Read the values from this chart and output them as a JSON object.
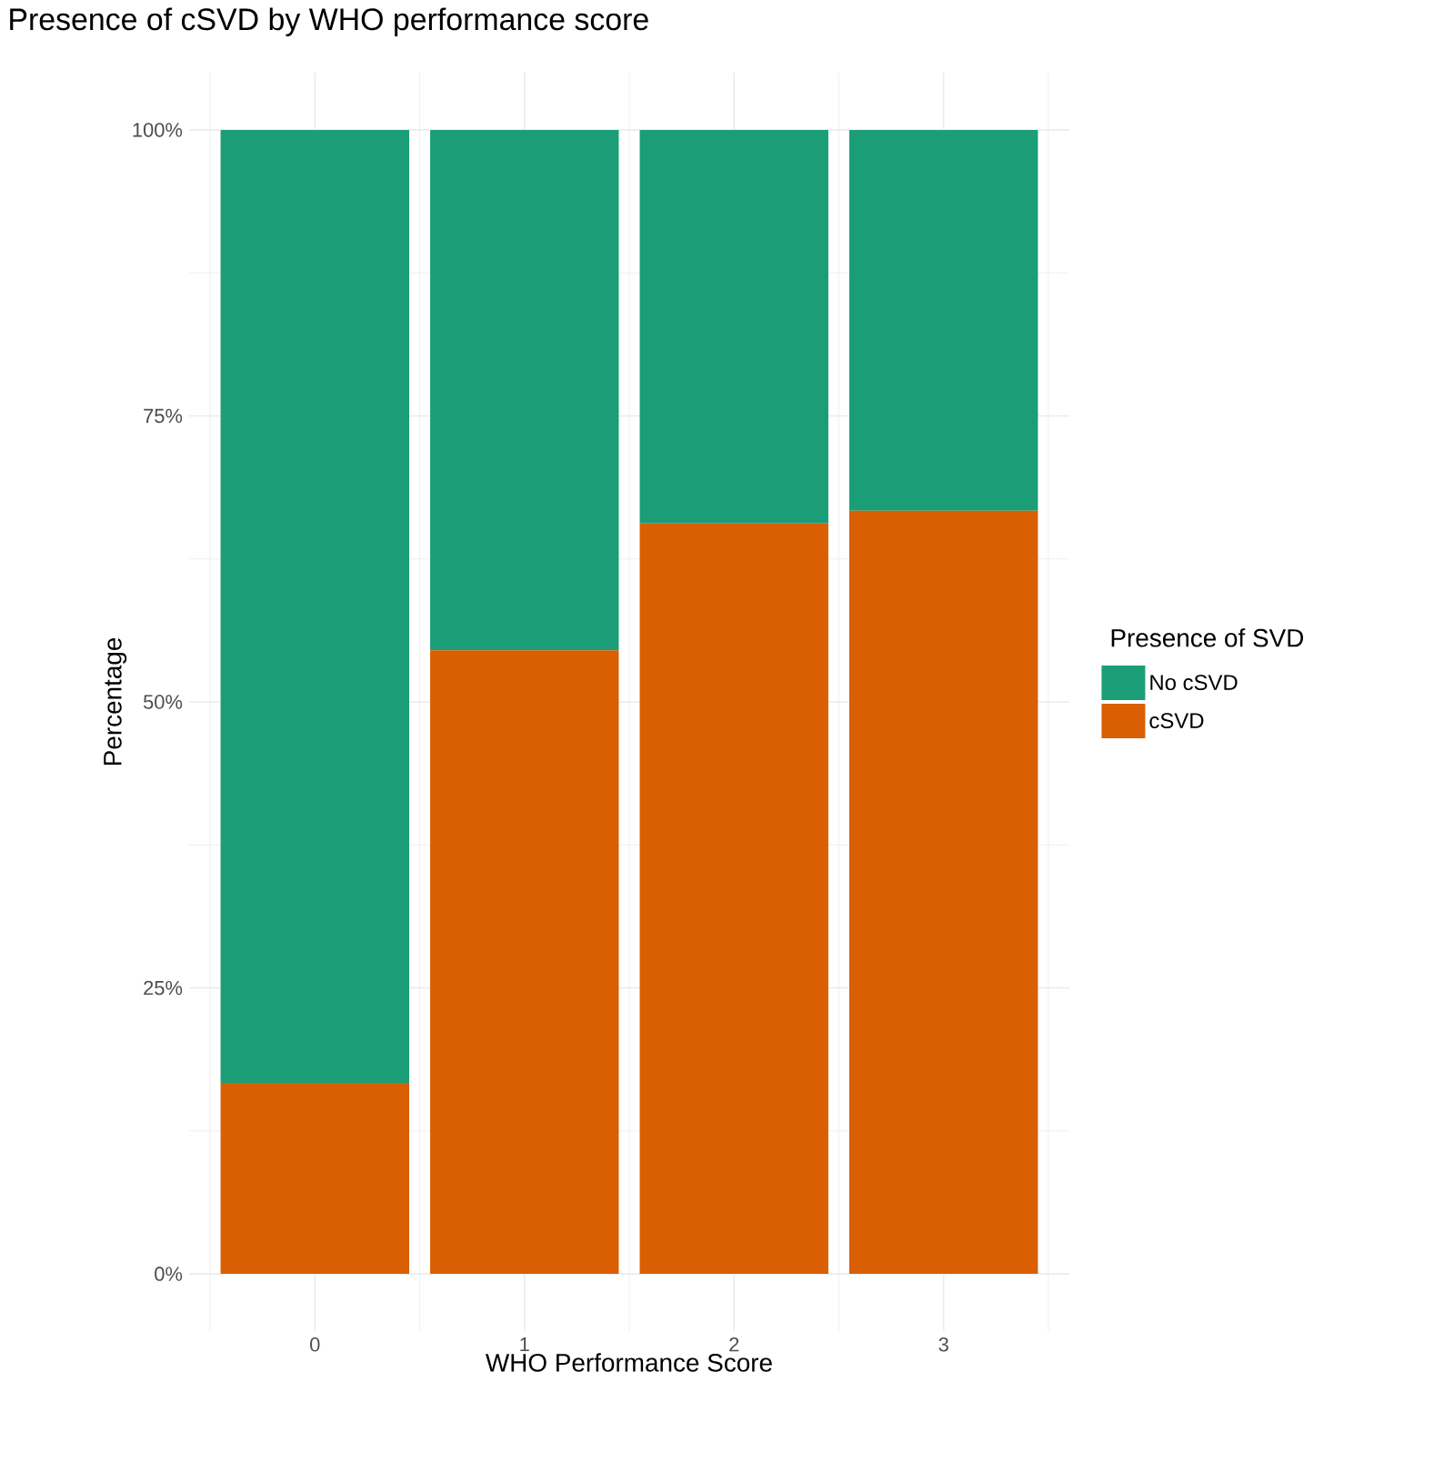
{
  "chart_data": {
    "type": "bar",
    "title": "Presence of cSVD by WHO performance score",
    "xlabel": "WHO Performance Score",
    "ylabel": "Percentage",
    "legend_title": "Presence of SVD",
    "categories": [
      "0",
      "1",
      "2",
      "3"
    ],
    "stacked": true,
    "series": [
      {
        "name": "cSVD",
        "color": "#d95f02",
        "values": [
          16.7,
          54.5,
          65.6,
          66.7
        ]
      },
      {
        "name": "No cSVD",
        "color": "#1b9e77",
        "values": [
          83.3,
          45.5,
          34.4,
          33.3
        ]
      }
    ],
    "ylim": [
      0,
      100
    ],
    "yticks": [
      {
        "value": 0,
        "label": "0%"
      },
      {
        "value": 25,
        "label": "25%"
      },
      {
        "value": 50,
        "label": "50%"
      },
      {
        "value": 75,
        "label": "75%"
      },
      {
        "value": 100,
        "label": "100%"
      }
    ],
    "grid": true,
    "legend": "right"
  }
}
